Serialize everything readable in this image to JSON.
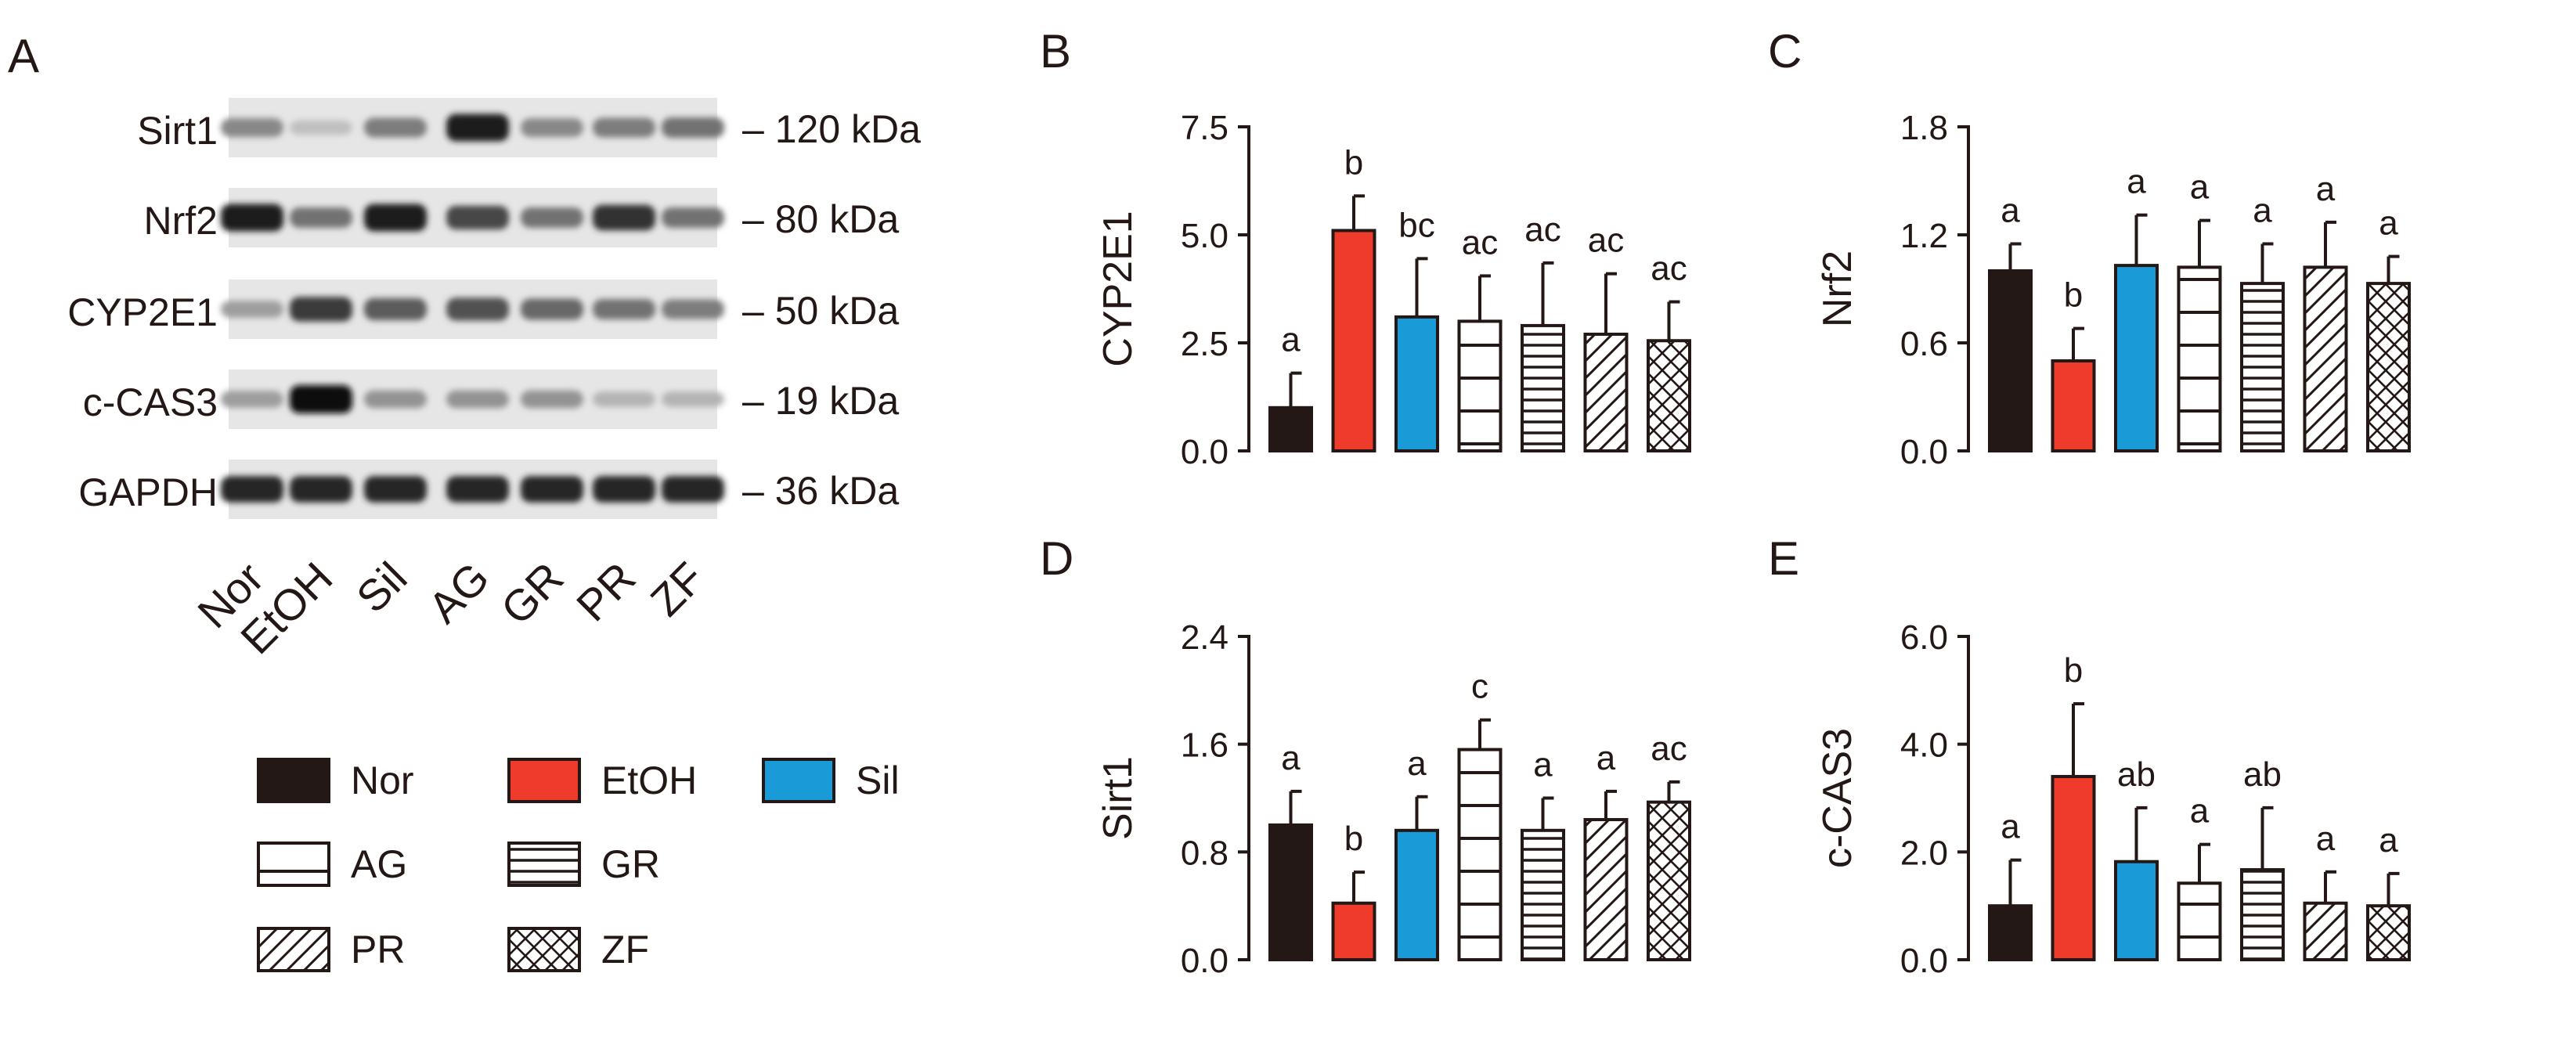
{
  "colors": {
    "nor": "#231815",
    "etoh": "#ef3b2c",
    "sil": "#1a9ad7",
    "axis": "#231815",
    "bg": "#ffffff"
  },
  "panel_labels": [
    "A",
    "B",
    "C",
    "D",
    "E"
  ],
  "western_blot": {
    "panel_label": "A",
    "proteins": [
      {
        "name": "Sirt1",
        "size": "– 120 kDa",
        "intensity": [
          0.45,
          0.2,
          0.5,
          0.95,
          0.45,
          0.5,
          0.55
        ]
      },
      {
        "name": "Nrf2",
        "size": "– 80 kDa",
        "intensity": [
          0.95,
          0.55,
          0.95,
          0.75,
          0.55,
          0.85,
          0.55
        ]
      },
      {
        "name": "CYP2E1",
        "size": "– 50 kDa",
        "intensity": [
          0.35,
          0.8,
          0.65,
          0.7,
          0.6,
          0.55,
          0.5
        ]
      },
      {
        "name": "c-CAS3",
        "size": "– 19 kDa",
        "intensity": [
          0.35,
          1.0,
          0.4,
          0.4,
          0.4,
          0.25,
          0.25
        ]
      },
      {
        "name": "GAPDH",
        "size": "– 36 kDa",
        "intensity": [
          0.9,
          0.9,
          0.9,
          0.9,
          0.9,
          0.9,
          0.9
        ]
      }
    ],
    "lanes": [
      "Nor",
      "EtOH",
      "Sil",
      "AG",
      "GR",
      "PR",
      "ZF"
    ]
  },
  "legend": [
    {
      "label": "Nor",
      "pattern": "solid-nor"
    },
    {
      "label": "EtOH",
      "pattern": "solid-etoh"
    },
    {
      "label": "Sil",
      "pattern": "solid-sil"
    },
    {
      "label": "AG",
      "pattern": "hlines-wide"
    },
    {
      "label": "GR",
      "pattern": "hlines-dense"
    },
    {
      "label": "PR",
      "pattern": "diag"
    },
    {
      "label": "ZF",
      "pattern": "cross"
    }
  ],
  "chart_data": [
    {
      "type": "bar",
      "panel": "B",
      "ylabel": "CYP2E1",
      "ylim": [
        0,
        7.5
      ],
      "ticks": [
        "0.0",
        "2.5",
        "5.0",
        "7.5"
      ],
      "categories": [
        "Nor",
        "EtOH",
        "Sil",
        "AG",
        "GR",
        "PR",
        "ZF"
      ],
      "values": [
        1.0,
        5.1,
        3.1,
        3.0,
        2.9,
        2.7,
        2.55
      ],
      "errors": [
        0.8,
        0.8,
        1.35,
        1.05,
        1.45,
        1.4,
        0.9
      ],
      "sig": [
        "a",
        "b",
        "bc",
        "ac",
        "ac",
        "ac",
        "ac"
      ]
    },
    {
      "type": "bar",
      "panel": "C",
      "ylabel": "Nrf2",
      "ylim": [
        0,
        1.8
      ],
      "ticks": [
        "0.0",
        "0.6",
        "1.2",
        "1.8"
      ],
      "categories": [
        "Nor",
        "EtOH",
        "Sil",
        "AG",
        "GR",
        "PR",
        "ZF"
      ],
      "values": [
        1.0,
        0.5,
        1.03,
        1.02,
        0.93,
        1.02,
        0.93
      ],
      "errors": [
        0.15,
        0.18,
        0.28,
        0.26,
        0.22,
        0.25,
        0.15
      ],
      "sig": [
        "a",
        "b",
        "a",
        "a",
        "a",
        "a",
        "a"
      ]
    },
    {
      "type": "bar",
      "panel": "D",
      "ylabel": "Sirt1",
      "ylim": [
        0,
        2.4
      ],
      "ticks": [
        "0.0",
        "0.8",
        "1.6",
        "2.4"
      ],
      "categories": [
        "Nor",
        "EtOH",
        "Sil",
        "AG",
        "GR",
        "PR",
        "ZF"
      ],
      "values": [
        1.0,
        0.42,
        0.96,
        1.56,
        0.96,
        1.04,
        1.17
      ],
      "errors": [
        0.25,
        0.23,
        0.25,
        0.22,
        0.24,
        0.21,
        0.15
      ],
      "sig": [
        "a",
        "b",
        "a",
        "c",
        "a",
        "a",
        "ac"
      ]
    },
    {
      "type": "bar",
      "panel": "E",
      "ylabel": "c-CAS3",
      "ylim": [
        0,
        6.0
      ],
      "ticks": [
        "0.0",
        "2.0",
        "4.0",
        "6.0"
      ],
      "categories": [
        "Nor",
        "EtOH",
        "Sil",
        "AG",
        "GR",
        "PR",
        "ZF"
      ],
      "values": [
        1.0,
        3.4,
        1.82,
        1.42,
        1.67,
        1.05,
        1.0
      ],
      "errors": [
        0.85,
        1.35,
        1.0,
        0.72,
        1.15,
        0.58,
        0.6
      ],
      "sig": [
        "a",
        "b",
        "ab",
        "a",
        "ab",
        "a",
        "a"
      ]
    }
  ]
}
